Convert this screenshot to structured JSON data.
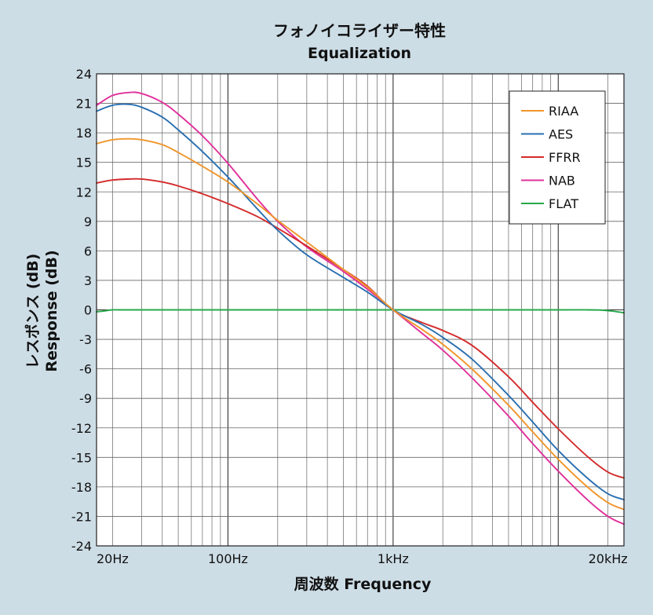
{
  "chart_data": {
    "type": "line",
    "title": "フォノイコライザー特性",
    "subtitle": "Equalization",
    "xlabel": "周波数 Frequency",
    "ylabel_jp": "レスポンス (dB)",
    "ylabel_en": "Response (dB)",
    "x_scale": "log",
    "xlim": [
      16,
      25000
    ],
    "ylim": [
      -24,
      24
    ],
    "y_ticks": [
      24,
      21,
      18,
      15,
      12,
      9,
      6,
      3,
      0,
      -3,
      -6,
      -9,
      -12,
      -15,
      -18,
      -21,
      -24
    ],
    "x_tick_labels": [
      {
        "value": 20,
        "label": "20Hz"
      },
      {
        "value": 100,
        "label": "100Hz"
      },
      {
        "value": 1000,
        "label": "1kHz"
      },
      {
        "value": 20000,
        "label": "20kHz"
      }
    ],
    "grid": true,
    "legend_position": "top-right",
    "series": [
      {
        "name": "RIAA",
        "color": "#f0952a",
        "x": [
          16,
          20,
          25,
          30,
          40,
          50,
          70,
          100,
          150,
          200,
          300,
          500,
          700,
          1000,
          1500,
          2000,
          3000,
          5000,
          7000,
          10000,
          15000,
          20000,
          25000
        ],
        "y": [
          16.9,
          17.3,
          17.4,
          17.3,
          16.8,
          16.0,
          14.6,
          13.0,
          10.8,
          9.1,
          6.9,
          4.1,
          2.3,
          0.0,
          -2.0,
          -3.5,
          -6.0,
          -9.7,
          -12.4,
          -15.2,
          -18.0,
          -19.6,
          -20.3
        ]
      },
      {
        "name": "AES",
        "color": "#2a6fb0",
        "x": [
          16,
          20,
          25,
          30,
          40,
          50,
          70,
          100,
          150,
          200,
          300,
          500,
          700,
          1000,
          1500,
          2000,
          3000,
          5000,
          7000,
          10000,
          15000,
          20000,
          25000
        ],
        "y": [
          20.2,
          20.8,
          20.9,
          20.6,
          19.6,
          18.3,
          16.1,
          13.5,
          10.3,
          8.1,
          5.6,
          3.3,
          1.8,
          0.0,
          -1.5,
          -2.8,
          -5.0,
          -8.7,
          -11.4,
          -14.3,
          -17.1,
          -18.7,
          -19.3
        ]
      },
      {
        "name": "FFRR",
        "color": "#d42a2a",
        "x": [
          16,
          20,
          25,
          30,
          40,
          50,
          70,
          100,
          150,
          200,
          300,
          500,
          700,
          1000,
          1500,
          2000,
          3000,
          5000,
          7000,
          10000,
          15000,
          20000,
          25000
        ],
        "y": [
          12.9,
          13.2,
          13.3,
          13.3,
          13.0,
          12.6,
          11.8,
          10.8,
          9.5,
          8.3,
          6.5,
          4.1,
          2.4,
          0.0,
          -1.3,
          -2.1,
          -3.6,
          -6.8,
          -9.4,
          -12.1,
          -14.9,
          -16.5,
          -17.1
        ]
      },
      {
        "name": "NAB",
        "color": "#e0309a",
        "x": [
          16,
          20,
          25,
          30,
          40,
          50,
          70,
          100,
          150,
          200,
          300,
          500,
          700,
          1000,
          1500,
          2000,
          3000,
          5000,
          7000,
          10000,
          15000,
          20000,
          25000
        ],
        "y": [
          20.8,
          21.8,
          22.1,
          22.0,
          21.1,
          19.9,
          17.7,
          14.9,
          11.3,
          9.0,
          6.4,
          3.9,
          2.1,
          0.0,
          -2.4,
          -4.1,
          -6.9,
          -10.8,
          -13.6,
          -16.4,
          -19.3,
          -21.0,
          -21.8
        ]
      },
      {
        "name": "FLAT",
        "color": "#27a84a",
        "x": [
          16,
          18,
          20,
          25,
          100,
          1000,
          10000,
          15000,
          18000,
          20000,
          22000,
          25000
        ],
        "y": [
          -0.2,
          -0.1,
          0.0,
          0.0,
          0.0,
          0.0,
          0.0,
          0.0,
          -0.02,
          -0.08,
          -0.15,
          -0.3
        ]
      }
    ]
  }
}
